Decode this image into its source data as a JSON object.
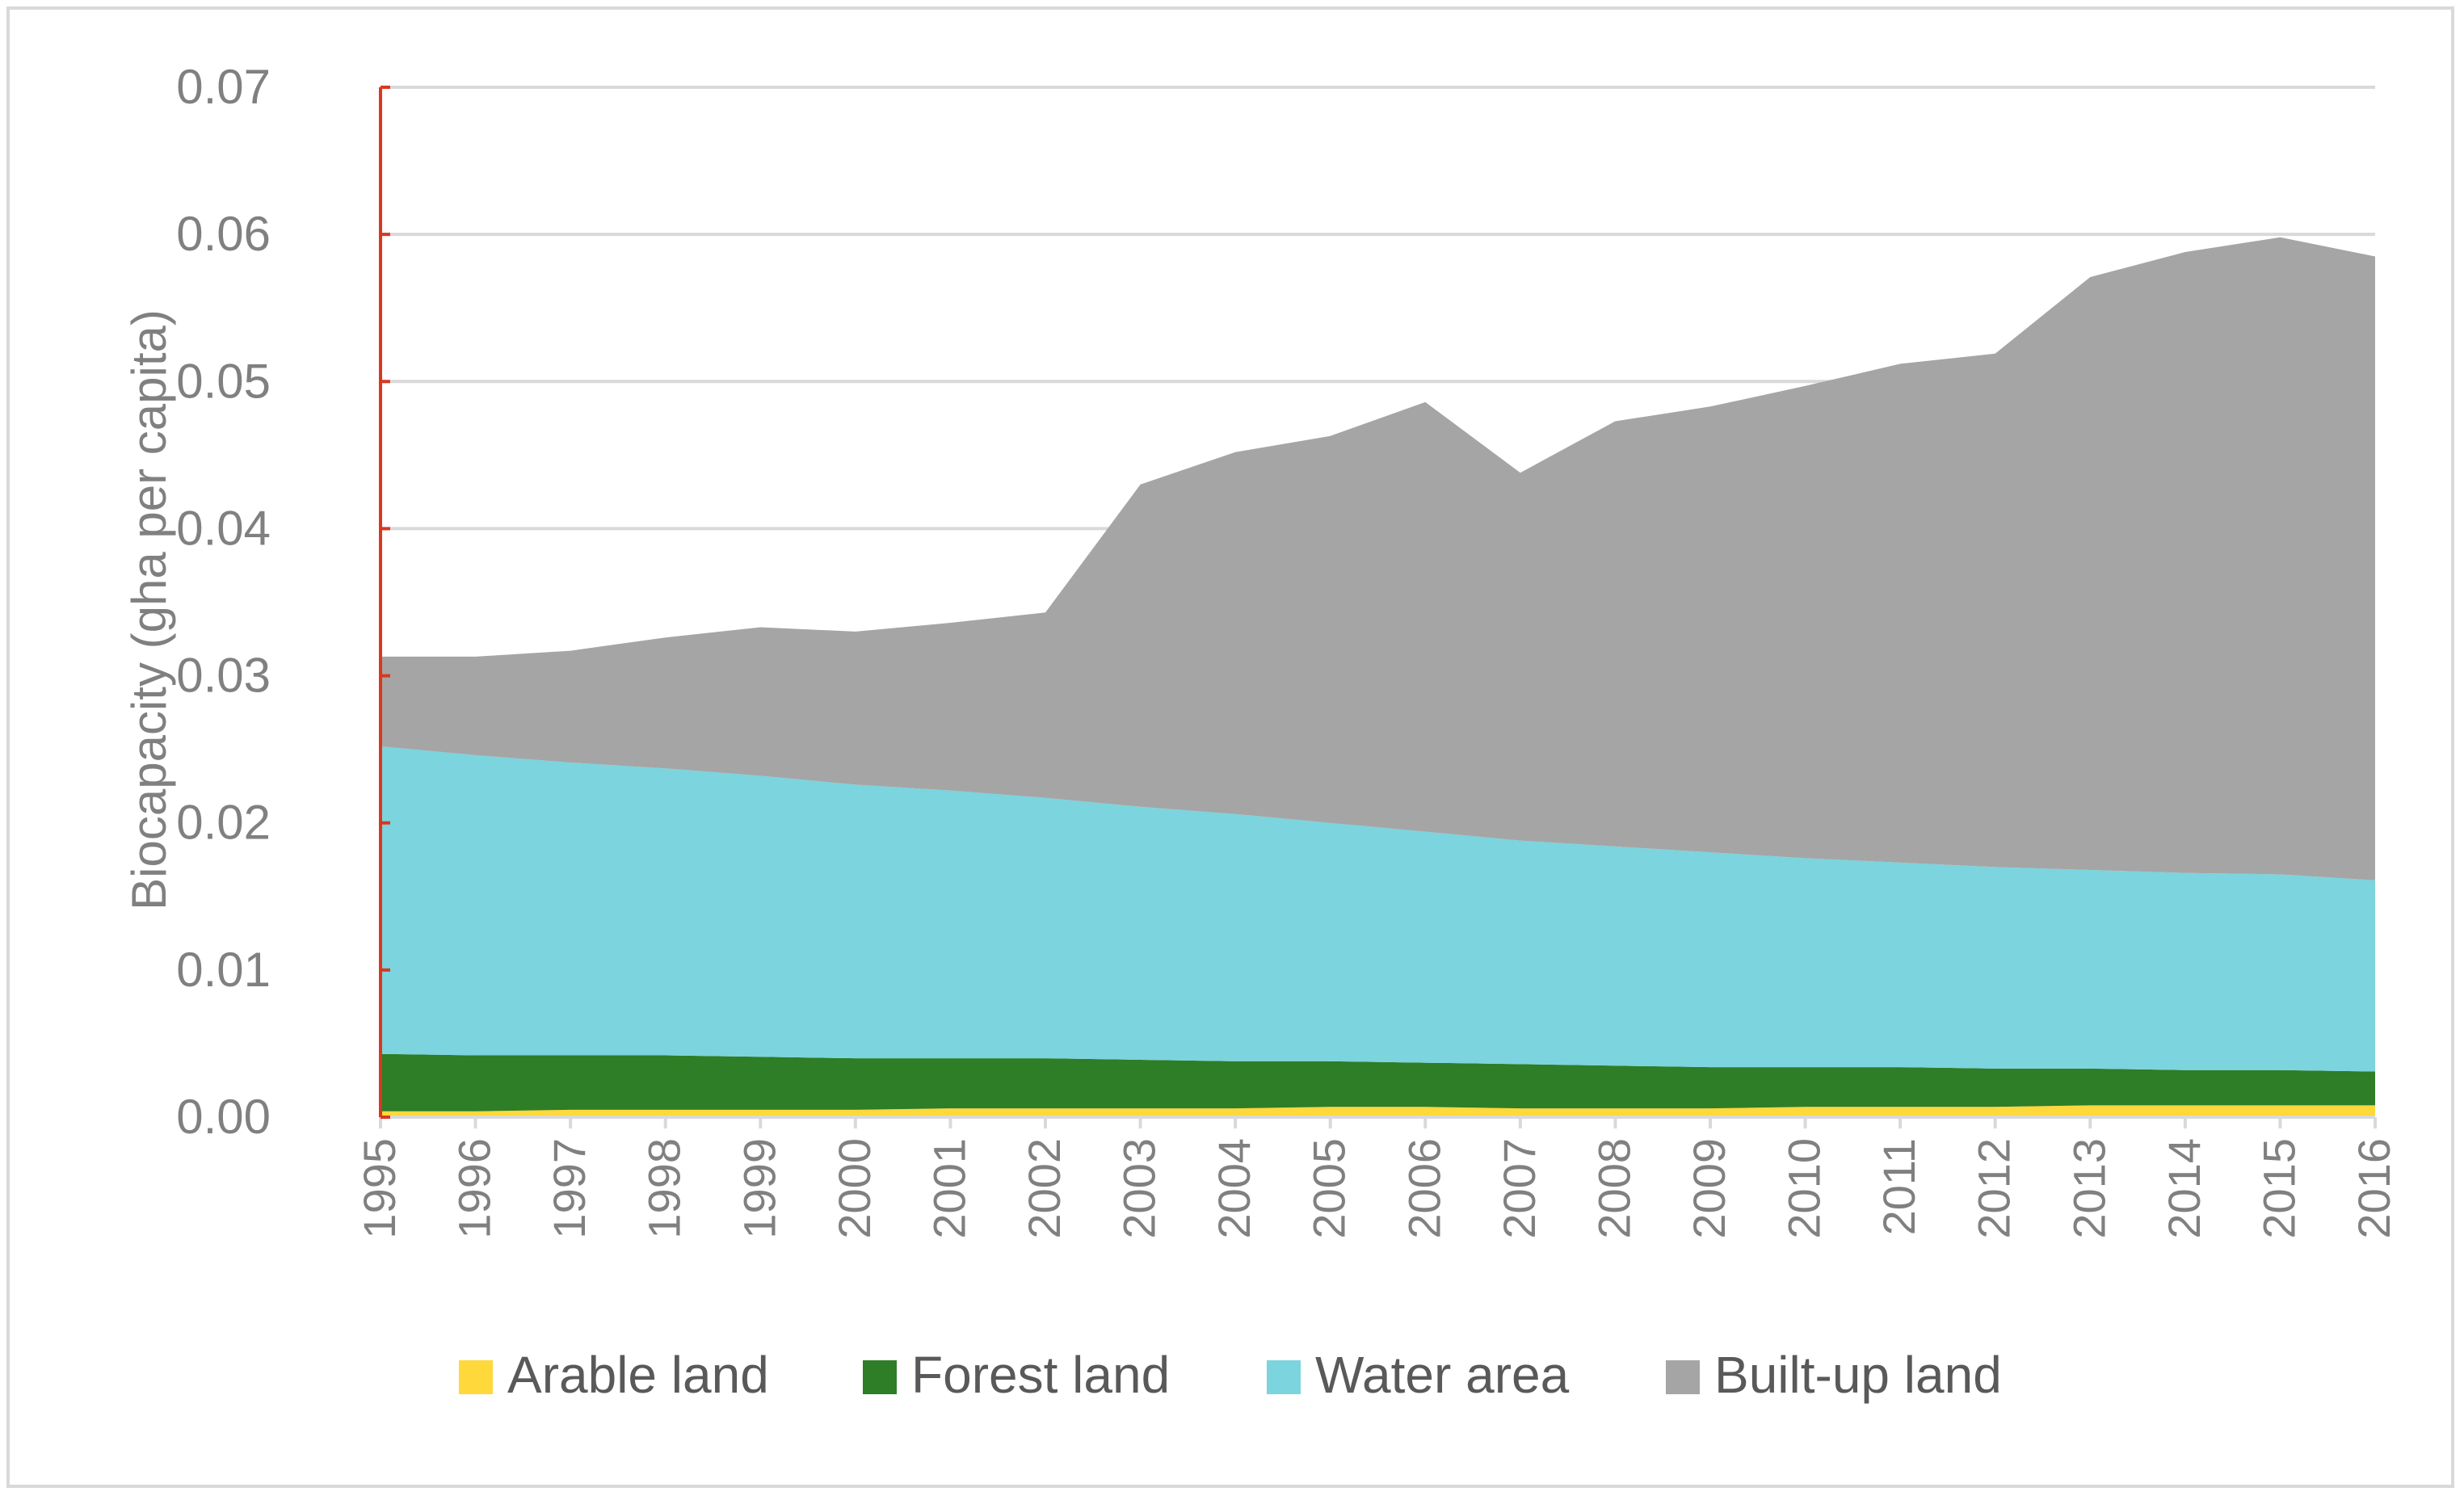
{
  "chart_data": {
    "type": "area",
    "stacked": true,
    "title": "",
    "xlabel": "",
    "ylabel": "Biocapacity (gha per capita)",
    "ylim": [
      0,
      0.07
    ],
    "yticks": [
      0,
      0.01,
      0.02,
      0.03,
      0.04,
      0.05,
      0.06,
      0.07
    ],
    "ytick_labels": [
      "0.00",
      "0.01",
      "0.02",
      "0.03",
      "0.04",
      "0.05",
      "0.06",
      "0.07"
    ],
    "grid": true,
    "legend_position": "bottom",
    "categories": [
      "1995",
      "1996",
      "1997",
      "1998",
      "1999",
      "2000",
      "2001",
      "2002",
      "2003",
      "2004",
      "2005",
      "2006",
      "2007",
      "2008",
      "2009",
      "2010",
      "2011",
      "2012",
      "2013",
      "2014",
      "2015",
      "2016"
    ],
    "series": [
      {
        "name": "Arable land",
        "color": "#ffd83b",
        "values": [
          0.0004,
          0.0004,
          0.0005,
          0.0005,
          0.0005,
          0.0005,
          0.0006,
          0.0006,
          0.0006,
          0.0006,
          0.0007,
          0.0007,
          0.0006,
          0.0006,
          0.0006,
          0.0007,
          0.0007,
          0.0007,
          0.0008,
          0.0008,
          0.0008,
          0.0008
        ]
      },
      {
        "name": "Forest land",
        "color": "#2e7d27",
        "values": [
          0.0039,
          0.0038,
          0.0037,
          0.0037,
          0.0036,
          0.0035,
          0.0034,
          0.0034,
          0.0033,
          0.0032,
          0.0031,
          0.003,
          0.003,
          0.0029,
          0.0028,
          0.0027,
          0.0027,
          0.0026,
          0.0025,
          0.0024,
          0.0024,
          0.0023
        ]
      },
      {
        "name": "Water area",
        "color": "#7bd4de",
        "values": [
          0.0209,
          0.0204,
          0.0199,
          0.0195,
          0.0191,
          0.0186,
          0.0182,
          0.0177,
          0.0172,
          0.0168,
          0.0162,
          0.0157,
          0.0152,
          0.0149,
          0.0146,
          0.0142,
          0.0139,
          0.0137,
          0.0135,
          0.0134,
          0.0133,
          0.013
        ]
      },
      {
        "name": "Built-up land",
        "color": "#a5a5a5",
        "values": [
          0.0061,
          0.0067,
          0.0076,
          0.0089,
          0.0101,
          0.0104,
          0.0114,
          0.0126,
          0.0219,
          0.0246,
          0.0263,
          0.0292,
          0.025,
          0.0289,
          0.0303,
          0.0321,
          0.0339,
          0.0349,
          0.0403,
          0.0422,
          0.0433,
          0.0424
        ]
      }
    ]
  },
  "colors": {
    "gridline": "#d9d9d9",
    "y_axis_line": "#d9381e",
    "x_axis_line": "#d9d9d9",
    "tick_text": "#808080",
    "legend_text": "#595959"
  }
}
